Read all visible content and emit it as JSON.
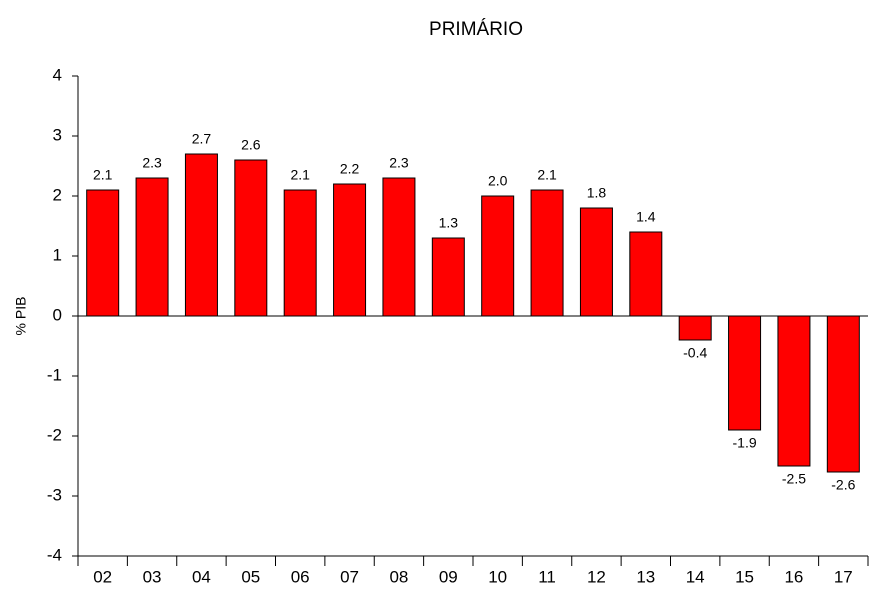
{
  "chart_data": {
    "type": "bar",
    "title": "PRIMÁRIO",
    "y_label": "% PIB",
    "categories": [
      "02",
      "03",
      "04",
      "05",
      "06",
      "07",
      "08",
      "09",
      "10",
      "11",
      "12",
      "13",
      "14",
      "15",
      "16",
      "17"
    ],
    "values": [
      2.1,
      2.3,
      2.7,
      2.6,
      2.1,
      2.2,
      2.3,
      1.3,
      2.0,
      2.1,
      1.8,
      1.4,
      -0.4,
      -1.9,
      -2.5,
      -2.6
    ],
    "value_labels": [
      "2.1",
      "2.3",
      "2.7",
      "2.6",
      "2.1",
      "2.2",
      "2.3",
      "1.3",
      "2.0",
      "2.1",
      "1.8",
      "1.4",
      "-0.4",
      "-1.9",
      "-2.5",
      "-2.6"
    ],
    "color": "#ff0000",
    "ylim": [
      -4,
      4
    ],
    "yticks": [
      -4,
      -3,
      -2,
      -1,
      0,
      1,
      2,
      3,
      4
    ],
    "grid": false
  }
}
